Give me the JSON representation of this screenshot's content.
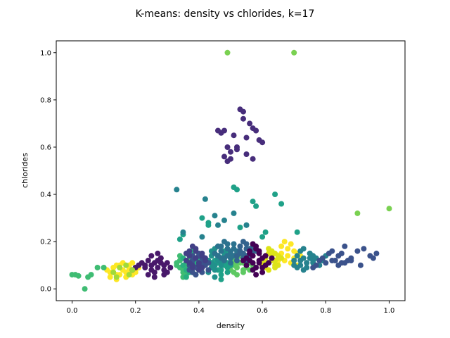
{
  "chart_data": {
    "type": "scatter",
    "title": "K-means: density vs chlorides, k=17",
    "xlabel": "density",
    "ylabel": "chlorides",
    "xlim": [
      -0.05,
      1.05
    ],
    "ylim": [
      -0.05,
      1.05
    ],
    "xticks": [
      "0.0",
      "0.2",
      "0.4",
      "0.6",
      "0.8",
      "1.0"
    ],
    "yticks": [
      "0.0",
      "0.2",
      "0.4",
      "0.6",
      "0.8",
      "1.0"
    ],
    "grid": false,
    "colormap": "viridis",
    "clusters": [
      {
        "color": "#fde725",
        "x": [
          0.11,
          0.12,
          0.13,
          0.14,
          0.15,
          0.16,
          0.17,
          0.18,
          0.19,
          0.2,
          0.12,
          0.14,
          0.16,
          0.18,
          0.2,
          0.15,
          0.17,
          0.19,
          0.13,
          0.21,
          0.14,
          0.18,
          0.66,
          0.67,
          0.68,
          0.69,
          0.7,
          0.71,
          0.66,
          0.68,
          0.7,
          0.67,
          0.69,
          0.72,
          0.65,
          0.71
        ],
        "y": [
          0.08,
          0.07,
          0.09,
          0.06,
          0.1,
          0.08,
          0.07,
          0.09,
          0.06,
          0.08,
          0.05,
          0.1,
          0.11,
          0.1,
          0.07,
          0.06,
          0.05,
          0.11,
          0.07,
          0.09,
          0.04,
          0.08,
          0.15,
          0.12,
          0.14,
          0.11,
          0.13,
          0.15,
          0.18,
          0.17,
          0.16,
          0.2,
          0.19,
          0.14,
          0.12,
          0.1
        ]
      },
      {
        "color": "#dde318",
        "x": [
          0.6,
          0.61,
          0.62,
          0.63,
          0.64,
          0.65,
          0.61,
          0.62,
          0.63,
          0.64,
          0.65,
          0.6,
          0.62,
          0.64,
          0.63,
          0.61,
          0.65,
          0.66,
          0.62,
          0.64
        ],
        "y": [
          0.12,
          0.13,
          0.11,
          0.14,
          0.12,
          0.1,
          0.09,
          0.15,
          0.16,
          0.1,
          0.13,
          0.1,
          0.08,
          0.15,
          0.12,
          0.11,
          0.14,
          0.13,
          0.17,
          0.09
        ]
      },
      {
        "color": "#7ad151",
        "x": [
          0.49,
          0.7,
          0.9,
          1.0
        ],
        "y": [
          1.0,
          1.0,
          0.32,
          0.34
        ]
      },
      {
        "color": "#5ec962",
        "x": [
          0.5,
          0.51,
          0.52,
          0.53,
          0.54,
          0.55,
          0.56,
          0.51,
          0.52,
          0.53,
          0.54,
          0.55,
          0.5,
          0.52,
          0.54,
          0.56,
          0.53,
          0.51,
          0.55,
          0.57,
          0.52,
          0.54
        ],
        "y": [
          0.1,
          0.12,
          0.09,
          0.11,
          0.13,
          0.1,
          0.08,
          0.07,
          0.13,
          0.14,
          0.11,
          0.12,
          0.08,
          0.06,
          0.07,
          0.11,
          0.15,
          0.1,
          0.09,
          0.1,
          0.11,
          0.08
        ]
      },
      {
        "color": "#3fbc73",
        "x": [
          0.0,
          0.01,
          0.02,
          0.04,
          0.05,
          0.06,
          0.08,
          0.1,
          0.33,
          0.34,
          0.35,
          0.36,
          0.37,
          0.38,
          0.34,
          0.35,
          0.36,
          0.37,
          0.33,
          0.35,
          0.37,
          0.36,
          0.38,
          0.39,
          0.34,
          0.36
        ],
        "y": [
          0.06,
          0.06,
          0.055,
          0.0,
          0.05,
          0.06,
          0.09,
          0.09,
          0.1,
          0.12,
          0.08,
          0.11,
          0.09,
          0.13,
          0.14,
          0.07,
          0.06,
          0.1,
          0.11,
          0.05,
          0.12,
          0.15,
          0.07,
          0.06,
          0.09,
          0.1
        ]
      },
      {
        "color": "#28ae80",
        "x": [
          0.35,
          0.36,
          0.37,
          0.38,
          0.39,
          0.4,
          0.41,
          0.36,
          0.37,
          0.38,
          0.39,
          0.4,
          0.35,
          0.37,
          0.39,
          0.41,
          0.38,
          0.36,
          0.4,
          0.38
        ],
        "y": [
          0.1,
          0.12,
          0.14,
          0.09,
          0.11,
          0.13,
          0.1,
          0.08,
          0.07,
          0.15,
          0.06,
          0.08,
          0.13,
          0.11,
          0.12,
          0.09,
          0.16,
          0.05,
          0.11,
          0.12
        ]
      },
      {
        "color": "#1fa188",
        "x": [
          0.45,
          0.46,
          0.47,
          0.48,
          0.49,
          0.5,
          0.46,
          0.47,
          0.48,
          0.49,
          0.45,
          0.47,
          0.49,
          0.48,
          0.46,
          0.5,
          0.47,
          0.48,
          0.49,
          0.46,
          0.34,
          0.35,
          0.41,
          0.52,
          0.51,
          0.53,
          0.55,
          0.57,
          0.58,
          0.6,
          0.61,
          0.64,
          0.66,
          0.71,
          0.43,
          0.43
        ],
        "y": [
          0.1,
          0.12,
          0.08,
          0.11,
          0.09,
          0.13,
          0.14,
          0.06,
          0.1,
          0.07,
          0.12,
          0.13,
          0.15,
          0.16,
          0.11,
          0.1,
          0.04,
          0.14,
          0.11,
          0.08,
          0.21,
          0.23,
          0.3,
          0.42,
          0.43,
          0.26,
          0.27,
          0.37,
          0.35,
          0.22,
          0.24,
          0.4,
          0.36,
          0.24,
          0.27,
          0.28
        ]
      },
      {
        "color": "#21918c",
        "x": [
          0.43,
          0.44,
          0.45,
          0.46,
          0.47,
          0.48,
          0.44,
          0.45,
          0.46,
          0.47,
          0.43,
          0.45,
          0.47,
          0.46,
          0.44,
          0.48,
          0.45,
          0.46,
          0.47,
          0.44
        ],
        "y": [
          0.12,
          0.14,
          0.1,
          0.13,
          0.11,
          0.15,
          0.09,
          0.08,
          0.12,
          0.16,
          0.07,
          0.17,
          0.1,
          0.14,
          0.11,
          0.13,
          0.05,
          0.18,
          0.13,
          0.16
        ]
      },
      {
        "color": "#26828e",
        "x": [
          0.7,
          0.71,
          0.72,
          0.73,
          0.74,
          0.75,
          0.76,
          0.77,
          0.71,
          0.72,
          0.73,
          0.74,
          0.75,
          0.76,
          0.7,
          0.72,
          0.74,
          0.76,
          0.78,
          0.73,
          0.75,
          0.77,
          0.79,
          0.8,
          0.33,
          0.42,
          0.45,
          0.46,
          0.48,
          0.51,
          0.55,
          0.35,
          0.41
        ],
        "y": [
          0.12,
          0.14,
          0.1,
          0.13,
          0.11,
          0.15,
          0.12,
          0.1,
          0.09,
          0.16,
          0.08,
          0.11,
          0.13,
          0.14,
          0.1,
          0.12,
          0.09,
          0.11,
          0.1,
          0.17,
          0.15,
          0.13,
          0.12,
          0.14,
          0.42,
          0.38,
          0.31,
          0.27,
          0.29,
          0.32,
          0.27,
          0.24,
          0.22
        ]
      },
      {
        "color": "#2c728e",
        "x": [
          0.46,
          0.47,
          0.48,
          0.49,
          0.5,
          0.51,
          0.52,
          0.47,
          0.48,
          0.49,
          0.5,
          0.51,
          0.46,
          0.48,
          0.5,
          0.52,
          0.49,
          0.47,
          0.51,
          0.5,
          0.53,
          0.45,
          0.54,
          0.55
        ],
        "y": [
          0.14,
          0.16,
          0.13,
          0.17,
          0.15,
          0.14,
          0.16,
          0.18,
          0.12,
          0.19,
          0.13,
          0.17,
          0.18,
          0.2,
          0.11,
          0.15,
          0.14,
          0.13,
          0.19,
          0.16,
          0.18,
          0.15,
          0.13,
          0.17
        ]
      },
      {
        "color": "#33638d",
        "x": [
          0.52,
          0.53,
          0.54,
          0.55,
          0.56,
          0.57,
          0.53,
          0.54,
          0.55,
          0.56,
          0.52,
          0.54,
          0.56,
          0.55,
          0.53,
          0.57,
          0.58,
          0.55
        ],
        "y": [
          0.14,
          0.16,
          0.15,
          0.17,
          0.14,
          0.16,
          0.18,
          0.13,
          0.19,
          0.15,
          0.12,
          0.2,
          0.17,
          0.14,
          0.15,
          0.18,
          0.16,
          0.12
        ]
      },
      {
        "color": "#3b528b",
        "x": [
          0.37,
          0.38,
          0.39,
          0.4,
          0.41,
          0.42,
          0.43,
          0.38,
          0.39,
          0.4,
          0.41,
          0.42,
          0.37,
          0.39,
          0.41,
          0.43,
          0.4,
          0.38,
          0.42,
          0.4,
          0.81,
          0.82,
          0.83,
          0.84,
          0.85,
          0.86,
          0.87,
          0.88,
          0.9,
          0.92,
          0.94,
          0.96,
          0.95,
          0.84,
          0.86,
          0.88,
          0.91,
          0.79,
          0.8,
          0.82,
          0.85,
          0.78,
          0.77,
          0.76
        ],
        "y": [
          0.1,
          0.12,
          0.09,
          0.11,
          0.13,
          0.1,
          0.08,
          0.07,
          0.13,
          0.14,
          0.11,
          0.12,
          0.08,
          0.06,
          0.07,
          0.11,
          0.15,
          0.14,
          0.13,
          0.09,
          0.15,
          0.16,
          0.12,
          0.14,
          0.15,
          0.18,
          0.12,
          0.12,
          0.16,
          0.17,
          0.14,
          0.15,
          0.13,
          0.1,
          0.11,
          0.13,
          0.1,
          0.13,
          0.11,
          0.12,
          0.11,
          0.12,
          0.1,
          0.09
        ]
      },
      {
        "color": "#424086",
        "x": [
          0.36,
          0.37,
          0.38,
          0.39,
          0.4,
          0.41,
          0.42,
          0.37,
          0.38,
          0.39,
          0.4,
          0.41,
          0.36,
          0.38,
          0.4,
          0.42,
          0.39,
          0.37,
          0.41
        ],
        "y": [
          0.12,
          0.14,
          0.1,
          0.13,
          0.11,
          0.15,
          0.12,
          0.16,
          0.09,
          0.17,
          0.1,
          0.14,
          0.15,
          0.18,
          0.08,
          0.13,
          0.16,
          0.11,
          0.09
        ]
      },
      {
        "color": "#472d7b",
        "x": [
          0.46,
          0.47,
          0.48,
          0.49,
          0.5,
          0.51,
          0.53,
          0.54,
          0.55,
          0.57,
          0.58,
          0.59,
          0.52,
          0.49,
          0.48,
          0.5,
          0.52,
          0.55,
          0.57,
          0.56,
          0.54,
          0.6
        ],
        "y": [
          0.67,
          0.66,
          0.67,
          0.6,
          0.58,
          0.65,
          0.76,
          0.75,
          0.57,
          0.68,
          0.67,
          0.63,
          0.59,
          0.54,
          0.56,
          0.55,
          0.6,
          0.64,
          0.55,
          0.7,
          0.72,
          0.62
        ]
      },
      {
        "color": "#48186a",
        "x": [
          0.23,
          0.24,
          0.25,
          0.26,
          0.27,
          0.28,
          0.29,
          0.3,
          0.24,
          0.25,
          0.26,
          0.27,
          0.28,
          0.29,
          0.23,
          0.25,
          0.27,
          0.29,
          0.31,
          0.26,
          0.28,
          0.3,
          0.22,
          0.21,
          0.2,
          0.19
        ],
        "y": [
          0.1,
          0.12,
          0.08,
          0.11,
          0.09,
          0.13,
          0.1,
          0.07,
          0.06,
          0.14,
          0.05,
          0.12,
          0.11,
          0.08,
          0.09,
          0.1,
          0.15,
          0.06,
          0.09,
          0.07,
          0.13,
          0.11,
          0.11,
          0.1,
          0.09,
          0.08
        ]
      },
      {
        "color": "#440154",
        "x": [
          0.55,
          0.56,
          0.57,
          0.58,
          0.59,
          0.6,
          0.61,
          0.56,
          0.57,
          0.58,
          0.59,
          0.6,
          0.55,
          0.57,
          0.59,
          0.61,
          0.58,
          0.56,
          0.6,
          0.62,
          0.57,
          0.59,
          0.58,
          0.63,
          0.54
        ],
        "y": [
          0.1,
          0.12,
          0.14,
          0.09,
          0.11,
          0.13,
          0.1,
          0.16,
          0.08,
          0.17,
          0.15,
          0.07,
          0.13,
          0.11,
          0.12,
          0.14,
          0.18,
          0.15,
          0.09,
          0.11,
          0.19,
          0.16,
          0.06,
          0.13,
          0.12
        ]
      },
      {
        "color": "#a0da39",
        "x": [
          0.13,
          0.15,
          0.17,
          0.19,
          0.14,
          0.18
        ],
        "y": [
          0.07,
          0.09,
          0.1,
          0.08,
          0.05,
          0.06
        ]
      }
    ]
  }
}
